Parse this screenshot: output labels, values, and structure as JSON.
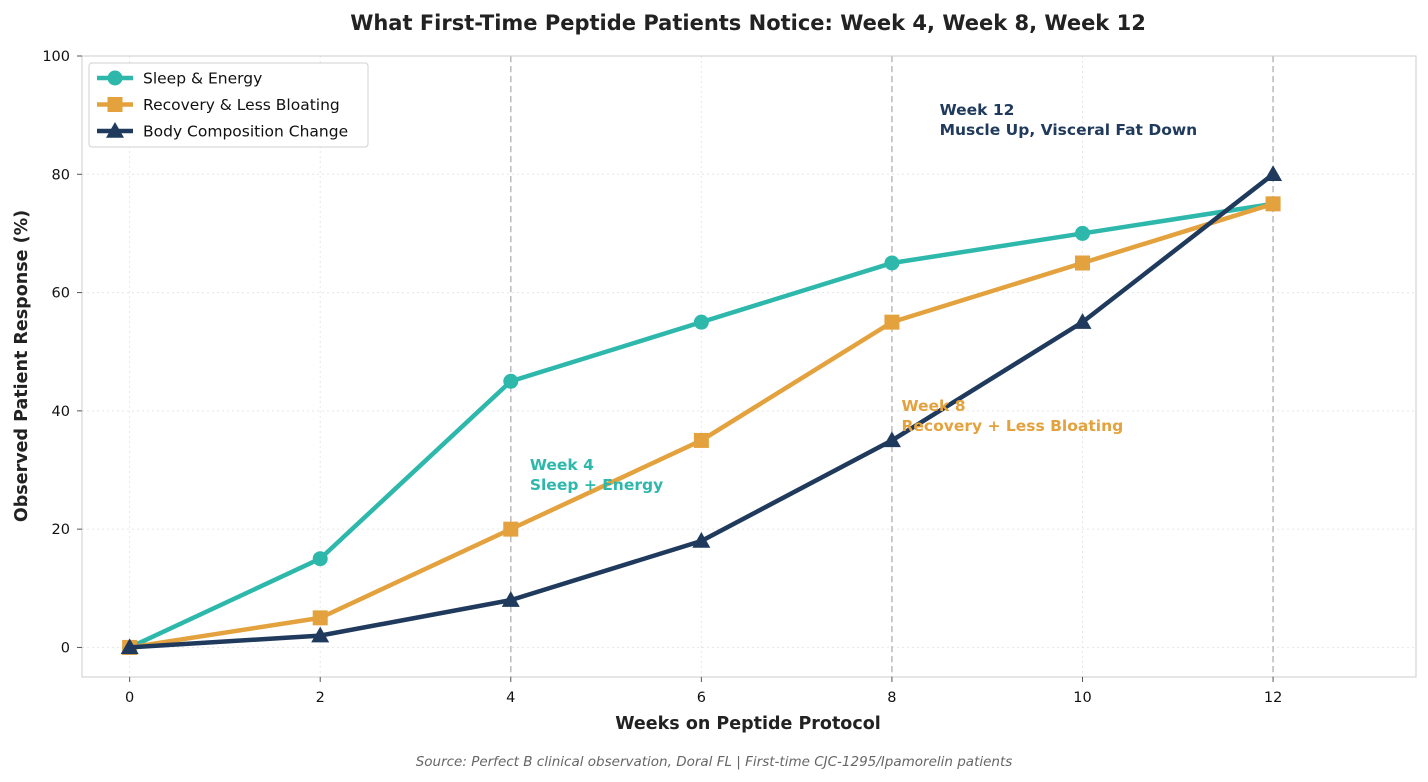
{
  "chart_data": {
    "type": "line",
    "title": "What First-Time Peptide Patients Notice: Week 4, Week 8, Week 12",
    "xlabel": "Weeks on Peptide Protocol",
    "ylabel": "Observed Patient Response (%)",
    "x": [
      0,
      2,
      4,
      6,
      8,
      10,
      12
    ],
    "xlim": [
      -0.5,
      13.5
    ],
    "ylim": [
      -5,
      100
    ],
    "xticks": [
      0,
      2,
      4,
      6,
      8,
      10,
      12
    ],
    "yticks": [
      0,
      20,
      40,
      60,
      80,
      100
    ],
    "grid": true,
    "legend_position": "top-left",
    "series": [
      {
        "name": "Sleep & Energy",
        "values": [
          0,
          15,
          45,
          55,
          65,
          70,
          75
        ],
        "color": "#2db8ab",
        "marker": "circle"
      },
      {
        "name": "Recovery & Less Bloating",
        "values": [
          0,
          5,
          20,
          35,
          55,
          65,
          75
        ],
        "color": "#e3a23d",
        "marker": "square"
      },
      {
        "name": "Body Composition Change",
        "values": [
          0,
          2,
          8,
          18,
          35,
          55,
          80
        ],
        "color": "#1f3a5c",
        "marker": "triangle"
      }
    ],
    "milestone_lines_x": [
      4,
      8,
      12
    ],
    "annotations": [
      {
        "lines": [
          "Week 4",
          "Sleep + Energy"
        ],
        "x": 4.2,
        "y": 30,
        "color": "#2db8ab"
      },
      {
        "lines": [
          "Week 8",
          "Recovery + Less Bloating"
        ],
        "x": 8.1,
        "y": 40,
        "color": "#e3a23d"
      },
      {
        "lines": [
          "Week 12",
          "Muscle Up, Visceral Fat Down"
        ],
        "x": 8.5,
        "y": 90,
        "color": "#1f3a5c"
      }
    ]
  },
  "source_note": "Source: Perfect B clinical observation, Doral FL | First-time CJC-1295/Ipamorelin patients"
}
